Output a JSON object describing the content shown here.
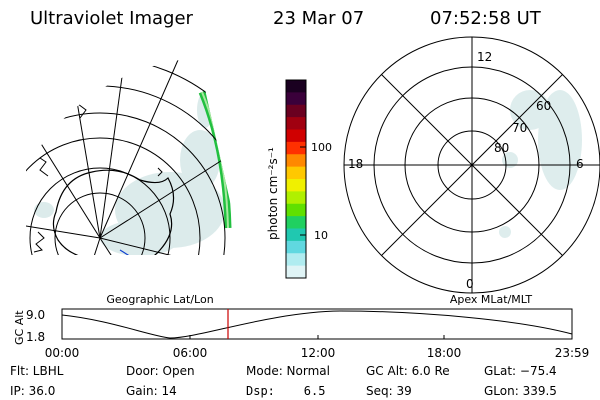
{
  "header": {
    "title": "Ultraviolet Imager",
    "date": "23 Mar 07",
    "time": "07:52:58 UT"
  },
  "colorbar": {
    "unit_label": "photon cm⁻²s⁻¹",
    "ticks": [
      "100",
      "10"
    ],
    "colors": [
      "#1a0020",
      "#3a003a",
      "#6a0020",
      "#a00010",
      "#d00000",
      "#ff3000",
      "#ff8800",
      "#ffc800",
      "#f0f000",
      "#b0f000",
      "#60e000",
      "#20d060",
      "#20c8b0",
      "#60d8e0",
      "#b0ecf0",
      "#e0f4f6"
    ]
  },
  "left_map": {
    "caption": "Geographic Lat/Lon"
  },
  "right_map": {
    "caption": "Apex MLat/MLT",
    "mlt_labels": {
      "top": "12",
      "left": "18",
      "right": "6",
      "bottom": "0"
    },
    "lat_labels": [
      "60",
      "70",
      "80"
    ]
  },
  "altitude_plot": {
    "ylabel": "GC Alt",
    "yticks": [
      "9.0",
      "1.8"
    ],
    "xticks": [
      "00:00",
      "06:00",
      "12:00",
      "18:00",
      "23:59"
    ],
    "marker_color": "#cc0000"
  },
  "info": {
    "flt": "Flt: LBHL",
    "ip": "IP: 36.0",
    "door": "Door: Open",
    "gain": "Gain: 14",
    "mode": "Mode: Normal",
    "dsp": "Dsp:    6.5",
    "gcalt": "GC Alt: 6.0 Re",
    "seq": "Seq: 39",
    "glat": "GLat: −75.4",
    "glon": "GLon: 339.5"
  }
}
